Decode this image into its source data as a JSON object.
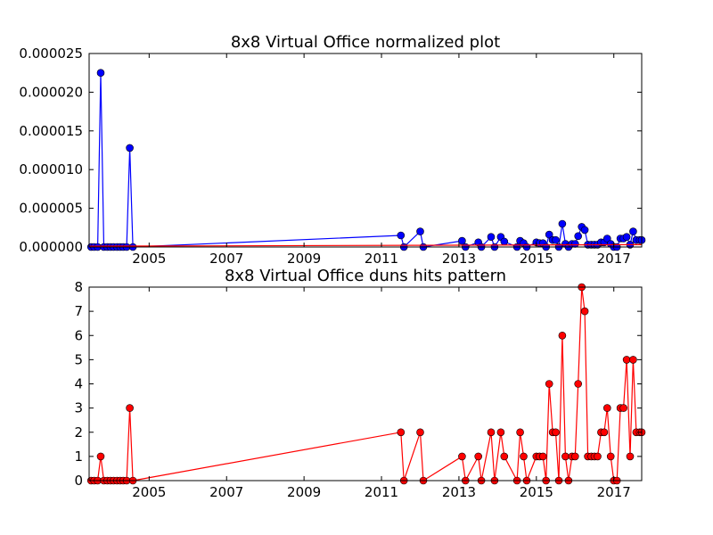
{
  "chart_data": [
    {
      "type": "line",
      "title": "8x8 Virtual Office normalized plot",
      "xlabel": "",
      "ylabel": "",
      "x_ticks": [
        "2005",
        "2007",
        "2009",
        "2011",
        "2013",
        "2015",
        "2017"
      ],
      "y_ticks": [
        "0.000000",
        "0.000005",
        "0.000010",
        "0.000015",
        "0.000020",
        "0.000025"
      ],
      "xlim": [
        2003.45,
        2017.72
      ],
      "ylim": [
        0,
        2.5e-05
      ],
      "grid": false,
      "series": [
        {
          "color": "#0000ff",
          "marker": "circle",
          "x": [
            2003.5,
            2003.58,
            2003.67,
            2003.75,
            2003.83,
            2003.92,
            2004.0,
            2004.08,
            2004.17,
            2004.25,
            2004.33,
            2004.42,
            2004.5,
            2004.58,
            2011.5,
            2011.58,
            2012.0,
            2012.08,
            2013.08,
            2013.17,
            2013.5,
            2013.58,
            2013.83,
            2013.92,
            2014.08,
            2014.17,
            2014.5,
            2014.58,
            2014.67,
            2014.75,
            2015.0,
            2015.08,
            2015.17,
            2015.25,
            2015.33,
            2015.42,
            2015.5,
            2015.58,
            2015.67,
            2015.75,
            2015.83,
            2015.92,
            2016.0,
            2016.08,
            2016.17,
            2016.25,
            2016.33,
            2016.42,
            2016.5,
            2016.58,
            2016.67,
            2016.75,
            2016.83,
            2016.92,
            2017.0,
            2017.08,
            2017.17,
            2017.25,
            2017.33,
            2017.42,
            2017.5,
            2017.58,
            2017.67,
            2017.72
          ],
          "y": [
            0,
            0,
            0,
            2.25e-05,
            0,
            0,
            0,
            0,
            0,
            0,
            0,
            0,
            1.28e-05,
            0,
            1.5e-06,
            0,
            2e-06,
            0,
            8e-07,
            0,
            6e-07,
            0,
            1.3e-06,
            0,
            1.3e-06,
            7e-07,
            0,
            8e-07,
            5e-07,
            0,
            6e-07,
            5e-07,
            5e-07,
            0,
            1.6e-06,
            9e-07,
            9e-07,
            0,
            3e-06,
            4e-07,
            0,
            4e-07,
            4e-07,
            1.4e-06,
            2.6e-06,
            2.2e-06,
            3e-07,
            3e-07,
            3e-07,
            3e-07,
            6e-07,
            6e-07,
            1.1e-06,
            4e-07,
            0,
            0,
            1.1e-06,
            1.1e-06,
            1.3e-06,
            3e-07,
            2e-06,
            9e-07,
            9e-07,
            9e-07
          ]
        },
        {
          "color": "#ff0000",
          "marker": "none",
          "x": [
            2003.45,
            2017.72
          ],
          "y": [
            1e-07,
            3e-07
          ]
        }
      ]
    },
    {
      "type": "line",
      "title": "8x8 Virtual Office duns hits pattern",
      "xlabel": "",
      "ylabel": "",
      "x_ticks": [
        "2005",
        "2007",
        "2009",
        "2011",
        "2013",
        "2015",
        "2017"
      ],
      "y_ticks": [
        "0",
        "1",
        "2",
        "3",
        "4",
        "5",
        "6",
        "7",
        "8"
      ],
      "xlim": [
        2003.45,
        2017.72
      ],
      "ylim": [
        0,
        8
      ],
      "grid": false,
      "series": [
        {
          "color": "#ff0000",
          "marker": "circle",
          "x": [
            2003.5,
            2003.58,
            2003.67,
            2003.75,
            2003.83,
            2003.92,
            2004.0,
            2004.08,
            2004.17,
            2004.25,
            2004.33,
            2004.42,
            2004.5,
            2004.58,
            2011.5,
            2011.58,
            2012.0,
            2012.08,
            2013.08,
            2013.17,
            2013.5,
            2013.58,
            2013.83,
            2013.92,
            2014.08,
            2014.17,
            2014.5,
            2014.58,
            2014.67,
            2014.75,
            2015.0,
            2015.08,
            2015.17,
            2015.25,
            2015.33,
            2015.42,
            2015.5,
            2015.58,
            2015.67,
            2015.75,
            2015.83,
            2015.92,
            2016.0,
            2016.08,
            2016.17,
            2016.25,
            2016.33,
            2016.42,
            2016.5,
            2016.58,
            2016.67,
            2016.75,
            2016.83,
            2016.92,
            2017.0,
            2017.08,
            2017.17,
            2017.25,
            2017.33,
            2017.42,
            2017.5,
            2017.58,
            2017.67,
            2017.72
          ],
          "y": [
            0,
            0,
            0,
            1,
            0,
            0,
            0,
            0,
            0,
            0,
            0,
            0,
            3,
            0,
            2,
            0,
            2,
            0,
            1,
            0,
            1,
            0,
            2,
            0,
            2,
            1,
            0,
            2,
            1,
            0,
            1,
            1,
            1,
            0,
            4,
            2,
            2,
            0,
            6,
            1,
            0,
            1,
            1,
            4,
            8,
            7,
            1,
            1,
            1,
            1,
            2,
            2,
            3,
            1,
            0,
            0,
            3,
            3,
            5,
            1,
            5,
            2,
            2,
            2
          ]
        }
      ]
    }
  ]
}
